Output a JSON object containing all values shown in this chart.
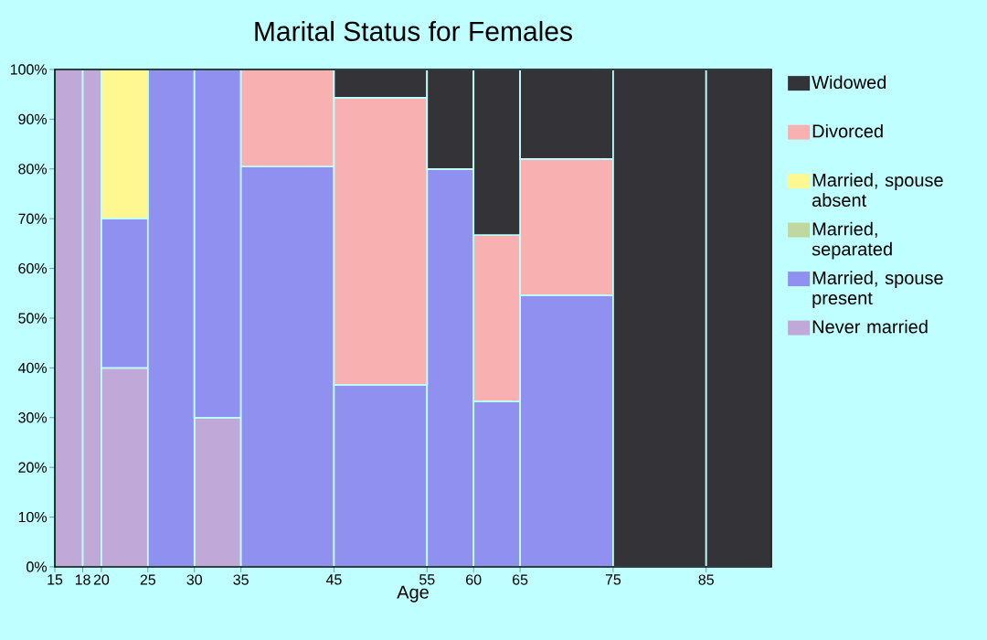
{
  "chart_data": {
    "type": "bar",
    "stacked": true,
    "title": "Marital Status for Females",
    "xlabel": "Age",
    "x": [
      16.5,
      19,
      22.5,
      27.5,
      32.5,
      40,
      50,
      57.5,
      62.5,
      70,
      80,
      88.5
    ],
    "xlim": [
      15,
      92
    ],
    "xticks": [
      15,
      18,
      20,
      25,
      30,
      35,
      45,
      55,
      60,
      65,
      75,
      85
    ],
    "ylim": [
      0,
      100
    ],
    "yticks": [
      {
        "value": 0,
        "label": "0%"
      },
      {
        "value": 10,
        "label": "10%"
      },
      {
        "value": 20,
        "label": "20%"
      },
      {
        "value": 30,
        "label": "30%"
      },
      {
        "value": 40,
        "label": "40%"
      },
      {
        "value": 50,
        "label": "50%"
      },
      {
        "value": 60,
        "label": "60%"
      },
      {
        "value": 70,
        "label": "70%"
      },
      {
        "value": 80,
        "label": "80%"
      },
      {
        "value": 90,
        "label": "90%"
      },
      {
        "value": 100,
        "label": "100%"
      }
    ],
    "legend": "right",
    "series": [
      {
        "name": "Never married",
        "color": "#c0a8d8",
        "values": [
          100,
          100,
          40,
          0,
          30,
          0,
          0,
          0,
          0,
          0,
          0,
          0
        ]
      },
      {
        "name": "Married, spouse present",
        "color": "#9090f0",
        "values": [
          0,
          0,
          30,
          100,
          70,
          80.5,
          36.6,
          80,
          33.3,
          54.6,
          0,
          0
        ]
      },
      {
        "name": "Married, separated",
        "color": "#c0d8a0",
        "values": [
          0,
          0,
          0,
          0,
          0,
          0,
          0,
          0,
          0,
          0,
          0,
          0
        ]
      },
      {
        "name": "Married, spouse absent",
        "color": "#fff890",
        "values": [
          0,
          0,
          30,
          0,
          0,
          0,
          0,
          0,
          0,
          0,
          0,
          0
        ]
      },
      {
        "name": "Divorced",
        "color": "#f8b0b0",
        "values": [
          0,
          0,
          0,
          0,
          0,
          19.5,
          57.7,
          0,
          33.4,
          27.4,
          0,
          0
        ]
      },
      {
        "name": "Widowed",
        "color": "#333338",
        "values": [
          0,
          0,
          0,
          0,
          0,
          0,
          5.7,
          20,
          33.3,
          18,
          100,
          100
        ]
      }
    ]
  }
}
